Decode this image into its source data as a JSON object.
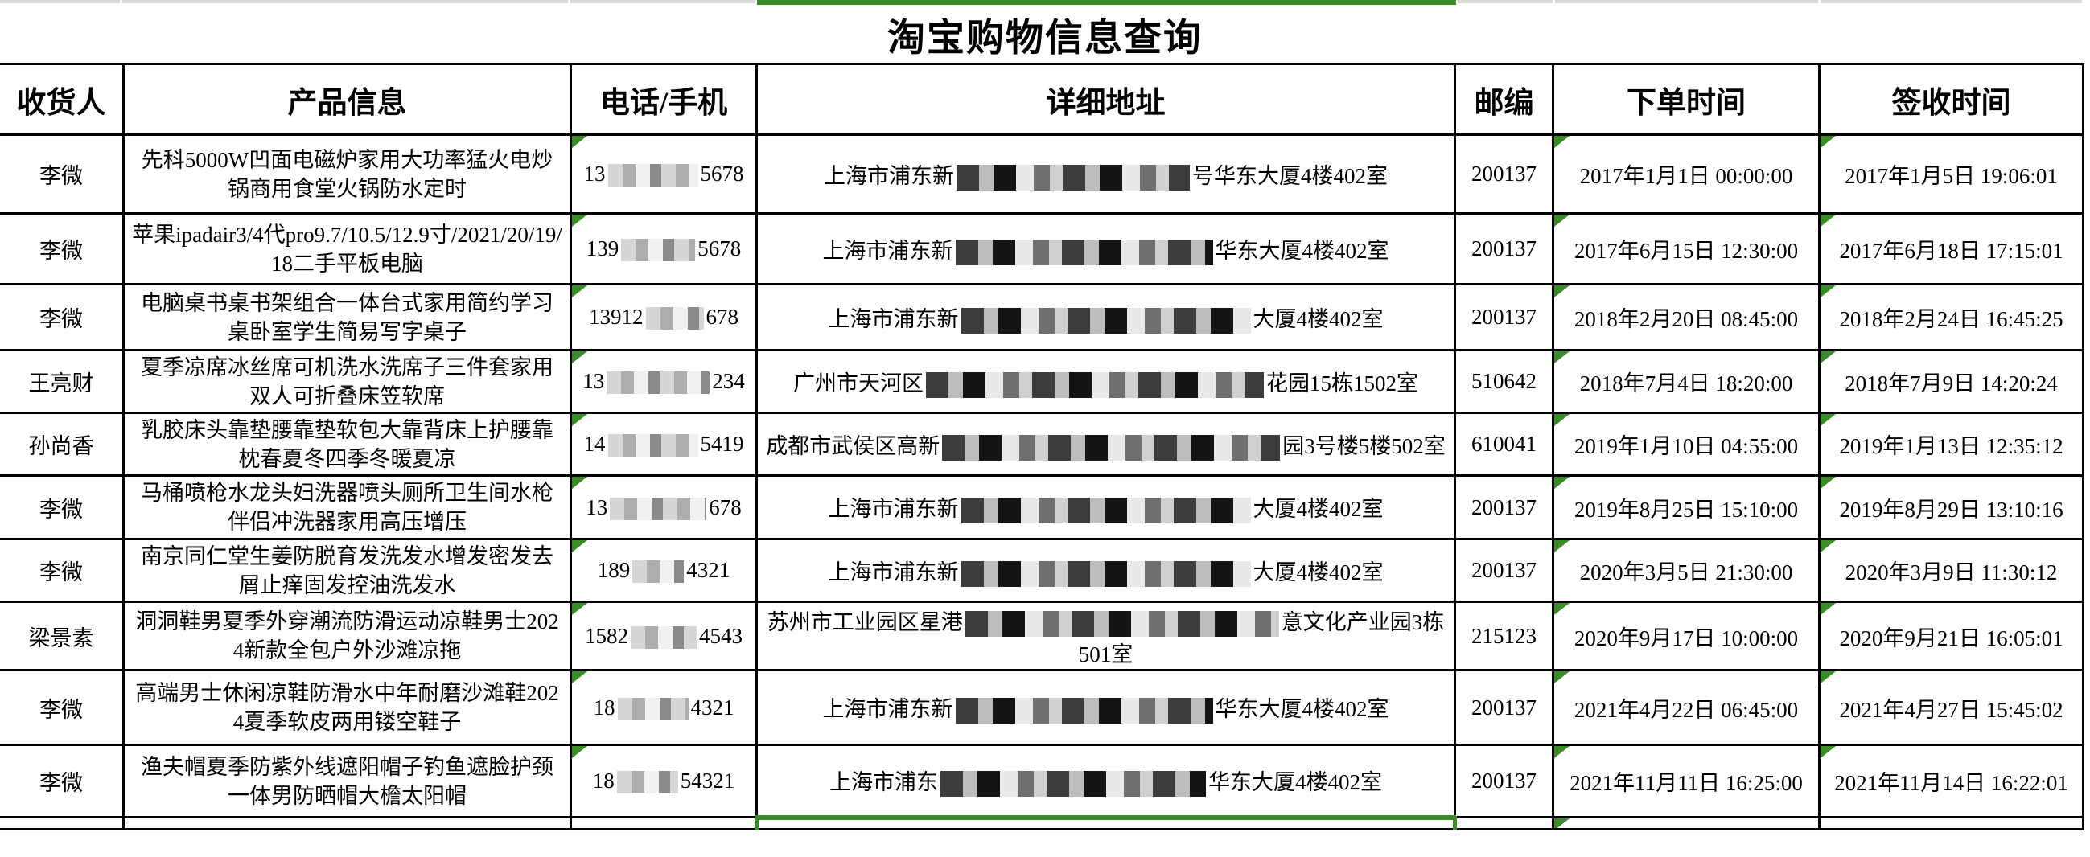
{
  "title": "淘宝购物信息查询",
  "colors": {
    "accent_green": "#3a8c28",
    "strip_gray": "#d9d9d9",
    "border_black": "#000000"
  },
  "icons": {
    "cell_error_triangle": "excel-error-triangle-icon"
  },
  "table": {
    "headers": [
      "收货人",
      "产品信息",
      "电话/手机",
      "详细地址",
      "邮编",
      "下单时间",
      "签收时间"
    ],
    "rows": [
      {
        "name": "李微",
        "product": "先科5000W凹面电磁炉家用大功率猛火电炒锅商用食堂火锅防水定时",
        "phone_prefix": "13",
        "phone_suffix": "5678",
        "phone_censor_w": 112,
        "addr_prefix": "上海市浦东新",
        "addr_suffix": "号华东大厦4楼402室",
        "addr_censor_w": 290,
        "zip": "200137",
        "order_time": "2017年1月1日  00:00:00",
        "sign_time": "2017年1月5日  19:06:01"
      },
      {
        "name": "李微",
        "product": "苹果ipadair3/4代pro9.7/10.5/12.9寸/2021/20/19/18二手平板电脑",
        "phone_prefix": "139",
        "phone_suffix": "5678",
        "phone_censor_w": 92,
        "addr_prefix": "上海市浦东新",
        "addr_suffix": "华东大厦4楼402室",
        "addr_censor_w": 320,
        "zip": "200137",
        "order_time": "2017年6月15日  12:30:00",
        "sign_time": "2017年6月18日  17:15:01"
      },
      {
        "name": "李微",
        "product": "电脑桌书桌书架组合一体台式家用简约学习桌卧室学生简易写字桌子",
        "phone_prefix": "13912",
        "phone_suffix": "678",
        "phone_censor_w": 72,
        "addr_prefix": "上海市浦东新",
        "addr_suffix": "大厦4楼402室",
        "addr_censor_w": 360,
        "zip": "200137",
        "order_time": "2018年2月20日  08:45:00",
        "sign_time": "2018年2月24日  16:45:25"
      },
      {
        "name": "王亮财",
        "product": "夏季凉席冰丝席可机洗水洗席子三件套家用双人可折叠床笠软席",
        "phone_prefix": "13",
        "phone_suffix": "234",
        "phone_censor_w": 128,
        "addr_prefix": "广州市天河区",
        "addr_suffix": "花园15栋1502室",
        "addr_censor_w": 420,
        "zip": "510642",
        "order_time": "2018年7月4日  18:20:00",
        "sign_time": "2018年7月9日  14:20:24"
      },
      {
        "name": "孙尚香",
        "product": "乳胶床头靠垫腰靠垫软包大靠背床上护腰靠枕春夏冬四季冬暖夏凉",
        "phone_prefix": "14",
        "phone_suffix": "5419",
        "phone_censor_w": 112,
        "addr_prefix": "成都市武侯区高新",
        "addr_suffix": "园3号楼5楼502室",
        "addr_censor_w": 420,
        "zip": "610041",
        "order_time": "2019年1月10日  04:55:00",
        "sign_time": "2019年1月13日  12:35:12"
      },
      {
        "name": "李微",
        "product": "马桶喷枪水龙头妇洗器喷头厕所卫生间水枪伴侣冲洗器家用高压增压",
        "phone_prefix": "13",
        "phone_suffix": "678",
        "phone_censor_w": 120,
        "addr_prefix": "上海市浦东新",
        "addr_suffix": "大厦4楼402室",
        "addr_censor_w": 360,
        "zip": "200137",
        "order_time": "2019年8月25日  15:10:00",
        "sign_time": "2019年8月29日  13:10:16"
      },
      {
        "name": "李微",
        "product": "南京同仁堂生姜防脱育发洗发水增发密发去屑止痒固发控油洗发水",
        "phone_prefix": "189",
        "phone_suffix": "4321",
        "phone_censor_w": 64,
        "addr_prefix": "上海市浦东新",
        "addr_suffix": "大厦4楼402室",
        "addr_censor_w": 360,
        "zip": "200137",
        "order_time": "2020年3月5日  21:30:00",
        "sign_time": "2020年3月9日  11:30:12"
      },
      {
        "name": "梁景素",
        "product": "洞洞鞋男夏季外穿潮流防滑运动凉鞋男士2024新款全包户外沙滩凉拖",
        "phone_prefix": "1582",
        "phone_suffix": "4543",
        "phone_censor_w": 82,
        "addr_prefix": "苏州市工业园区星港",
        "addr_suffix": "意文化产业园3栋501室",
        "addr_censor_w": 390,
        "zip": "215123",
        "order_time": "2020年9月17日  10:00:00",
        "sign_time": "2020年9月21日  16:05:01"
      },
      {
        "name": "李微",
        "product": "高端男士休闲凉鞋防滑水中年耐磨沙滩鞋2024夏季软皮两用镂空鞋子",
        "phone_prefix": "18",
        "phone_suffix": "4321",
        "phone_censor_w": 88,
        "addr_prefix": "上海市浦东新",
        "addr_suffix": "华东大厦4楼402室",
        "addr_censor_w": 320,
        "zip": "200137",
        "order_time": "2021年4月22日  06:45:00",
        "sign_time": "2021年4月27日  15:45:02"
      },
      {
        "name": "李微",
        "product": "渔夫帽夏季防紫外线遮阳帽子钓鱼遮脸护颈一体男防晒帽大檐太阳帽",
        "phone_prefix": "18",
        "phone_suffix": "54321",
        "phone_censor_w": 76,
        "addr_prefix": "上海市浦东",
        "addr_suffix": "华东大厦4楼402室",
        "addr_censor_w": 330,
        "zip": "200137",
        "order_time": "2021年11月11日  16:25:00",
        "sign_time": "2021年11月14日  16:22:01"
      }
    ],
    "partial_row": true
  }
}
